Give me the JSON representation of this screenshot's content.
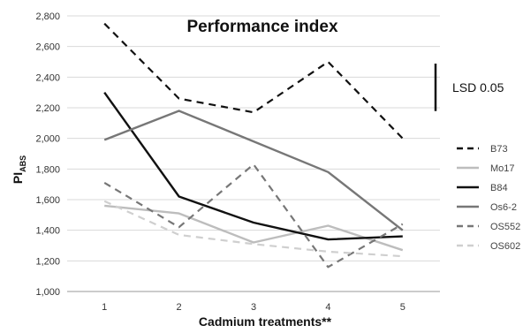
{
  "chart_data": {
    "type": "line",
    "title": "Performance index",
    "xlabel": "Cadmium treatments**",
    "ylabel": {
      "main": "PI",
      "sub": "ABS"
    },
    "categories": [
      "1",
      "2",
      "3",
      "4",
      "5"
    ],
    "ylim": [
      1000,
      2800
    ],
    "yticks": [
      1000,
      1200,
      1400,
      1600,
      1800,
      2000,
      2200,
      2400,
      2600,
      2800
    ],
    "ytick_labels": [
      "1,000",
      "1,200",
      "1,400",
      "1,600",
      "1,800",
      "2,000",
      "2,200",
      "2,400",
      "2,600",
      "2,800"
    ],
    "grid": "horizontal",
    "legend_position": "right",
    "series": [
      {
        "name": "B73",
        "values": [
          2750,
          2260,
          2170,
          2500,
          2000
        ],
        "color": "#111111",
        "dashed": true
      },
      {
        "name": "Mo17",
        "values": [
          1560,
          1510,
          1320,
          1430,
          1270
        ],
        "color": "#bdbdbd",
        "dashed": false
      },
      {
        "name": "B84",
        "values": [
          2300,
          1620,
          1450,
          1340,
          1360
        ],
        "color": "#111111",
        "dashed": false
      },
      {
        "name": "Os6-2",
        "values": [
          1990,
          2180,
          1980,
          1780,
          1400
        ],
        "color": "#777777",
        "dashed": false
      },
      {
        "name": "OS552",
        "values": [
          1710,
          1420,
          1830,
          1160,
          1440
        ],
        "color": "#777777",
        "dashed": true
      },
      {
        "name": "OS602",
        "values": [
          1590,
          1370,
          1310,
          1260,
          1230
        ],
        "color": "#cfcfcf",
        "dashed": true
      }
    ],
    "lsd": {
      "label": "LSD 0.05",
      "value": 310
    }
  }
}
